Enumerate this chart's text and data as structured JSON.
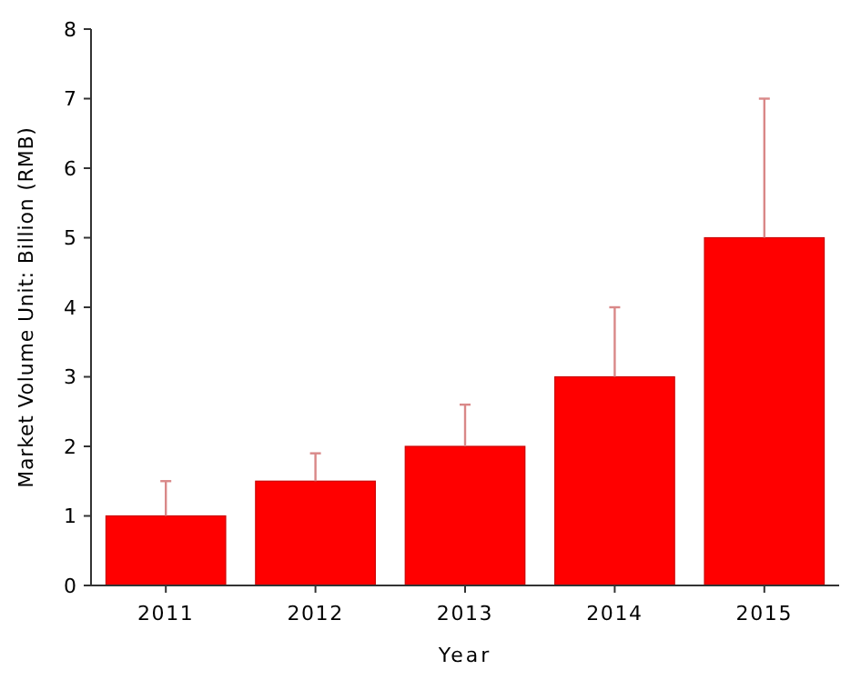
{
  "chart_data": {
    "type": "bar",
    "xlabel": "Year",
    "ylabel": "Market Volume Unit: Billion (RMB)",
    "categories": [
      "2011",
      "2012",
      "2013",
      "2014",
      "2015"
    ],
    "values": [
      1,
      1.5,
      2,
      3,
      5
    ],
    "errors": [
      [
        1,
        1.5
      ],
      [
        1.5,
        1.9
      ],
      [
        2,
        2.6
      ],
      [
        3,
        4
      ],
      [
        5,
        7
      ]
    ],
    "color": "#ff0000",
    "ylim": [
      0,
      8
    ],
    "yticks": [
      0,
      1,
      2,
      3,
      4,
      5,
      6,
      7,
      8
    ],
    "grid": false
  }
}
